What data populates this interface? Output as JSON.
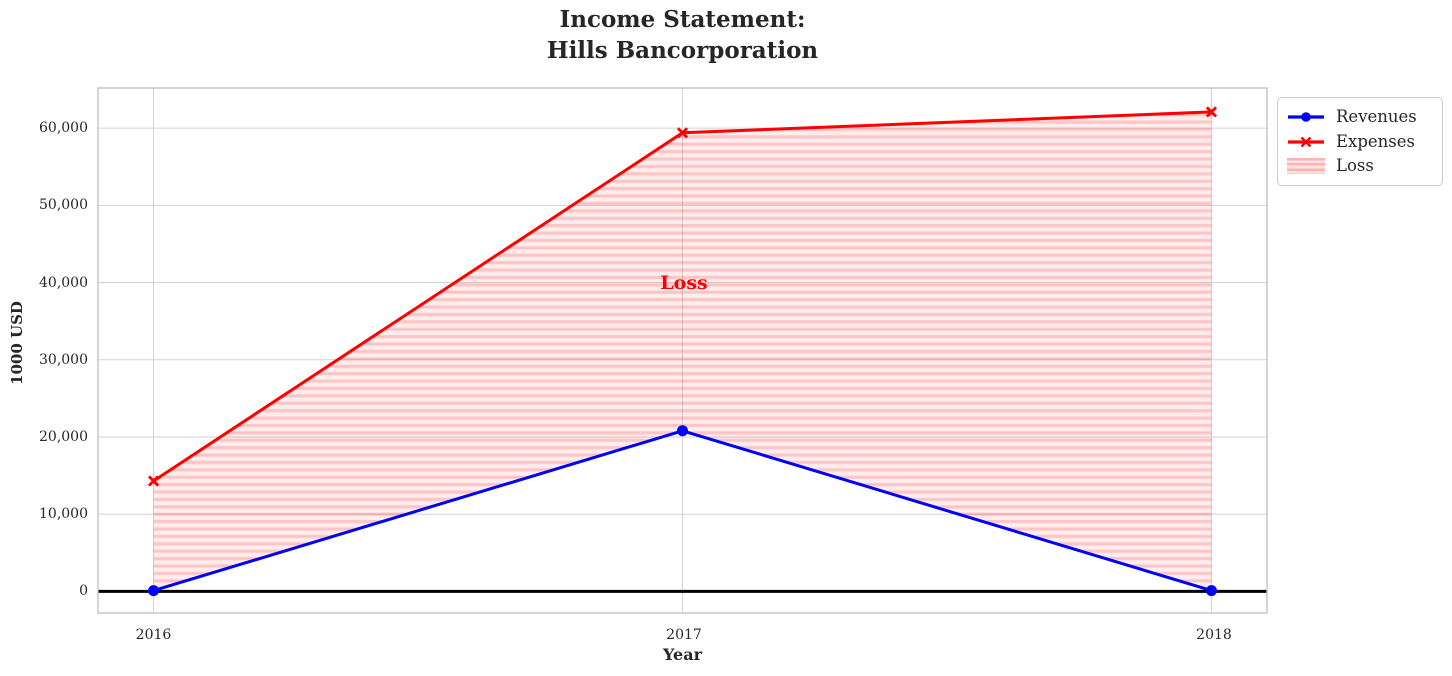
{
  "chart_data": {
    "type": "line",
    "title": "Income Statement:\nHills Bancorporation",
    "title_lines": [
      "Income Statement:",
      "Hills Bancorporation"
    ],
    "xlabel": "Year",
    "ylabel": "1000 USD",
    "x": [
      2016,
      2017,
      2018
    ],
    "xtick_labels": [
      "2016",
      "2017",
      "2018"
    ],
    "yticks": [
      0,
      10000,
      20000,
      30000,
      40000,
      50000,
      60000
    ],
    "ytick_labels": [
      "0",
      "10,000",
      "20,000",
      "30,000",
      "40,000",
      "50,000",
      "60,000"
    ],
    "xlim": [
      2015.895,
      2018.105
    ],
    "ylim": [
      -2800,
      65200
    ],
    "grid": true,
    "series": [
      {
        "name": "Revenues",
        "color": "#0000ff",
        "marker": "circle",
        "values": [
          100,
          20800,
          100
        ]
      },
      {
        "name": "Expenses",
        "color": "#ff0000",
        "marker": "x",
        "values": [
          14300,
          59400,
          62100
        ]
      }
    ],
    "fill_between": {
      "label": "Loss",
      "between": [
        "Revenues",
        "Expenses"
      ],
      "facecolor": "rgba(255,0,0,0.075)",
      "hatch": "horizontal-lines",
      "hatch_color": "rgba(255,0,0,0.165)"
    },
    "zero_line": {
      "y": 0,
      "color": "#000000"
    },
    "annotation": {
      "text": "Loss",
      "x": 2017,
      "y": 40000,
      "color": "#ff0000"
    },
    "legend": {
      "location": "upper-right-outside",
      "entries": [
        "Revenues",
        "Expenses",
        "Loss"
      ]
    },
    "style": {
      "grid_color": "#d3d3d3",
      "spine_color": "#c3c3c3",
      "text_color": "#262626",
      "background": "#ffffff"
    }
  }
}
